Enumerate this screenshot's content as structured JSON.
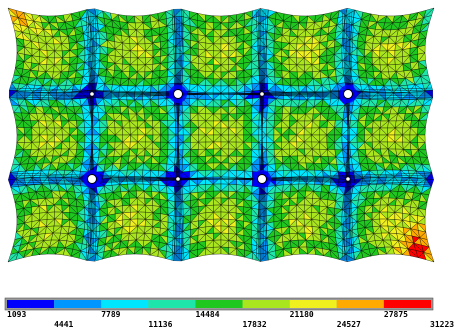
{
  "legend": {
    "colors": [
      "#0000ff",
      "#0096ff",
      "#00e6ff",
      "#1ee6aa",
      "#1ec81e",
      "#aae61e",
      "#f0f01e",
      "#ffaa00",
      "#ff0000"
    ],
    "ticks": [
      "1093",
      "4441",
      "7789",
      "11136",
      "14484",
      "17832",
      "21180",
      "24527",
      "27875",
      "31223"
    ]
  },
  "mesh": {
    "nodes_hole": [
      [
        1,
        1
      ],
      [
        2,
        2
      ]
    ],
    "nodes_small": [
      [
        0,
        1
      ],
      [
        1,
        0
      ],
      [
        1,
        2
      ],
      [
        2,
        0
      ],
      [
        2,
        1
      ],
      [
        3,
        0
      ],
      [
        3,
        1
      ],
      [
        3,
        2
      ],
      [
        0,
        2
      ],
      [
        0,
        0
      ],
      [
        1,
        1
      ]
    ]
  }
}
